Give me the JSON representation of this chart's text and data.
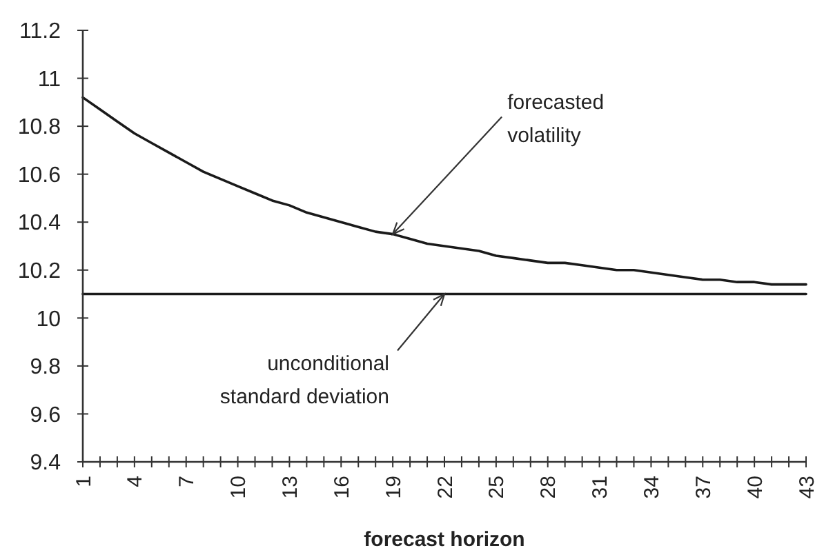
{
  "chart_data": {
    "type": "line",
    "xlabel": "forecast horizon",
    "categories": [
      "1",
      null,
      null,
      "4",
      null,
      null,
      "7",
      null,
      null,
      "10",
      null,
      null,
      "13",
      null,
      null,
      "16",
      null,
      null,
      "19",
      null,
      null,
      "22",
      null,
      null,
      "25",
      null,
      null,
      "28",
      null,
      null,
      "31",
      null,
      null,
      "34",
      null,
      null,
      "37",
      null,
      null,
      "40",
      null,
      null,
      "43"
    ],
    "series": [
      {
        "color": "#1a1a1a",
        "values": [
          10.92,
          10.87,
          10.82,
          10.77,
          10.73,
          10.69,
          10.65,
          10.61,
          10.58,
          10.55,
          10.52,
          10.49,
          10.47,
          10.44,
          10.42,
          10.4,
          10.38,
          10.36,
          10.35,
          10.33,
          10.31,
          10.3,
          10.29,
          10.28,
          10.26,
          10.25,
          10.24,
          10.23,
          10.23,
          10.22,
          10.21,
          10.2,
          10.2,
          10.19,
          10.18,
          10.17,
          10.16,
          10.16,
          10.15,
          10.15,
          10.14,
          10.14,
          10.14
        ]
      },
      {
        "color": "#1a1a1a",
        "values": [
          10.1,
          10.1,
          10.1,
          10.1,
          10.1,
          10.1,
          10.1,
          10.1,
          10.1,
          10.1,
          10.1,
          10.1,
          10.1,
          10.1,
          10.1,
          10.1,
          10.1,
          10.1,
          10.1,
          10.1,
          10.1,
          10.1,
          10.1,
          10.1,
          10.1,
          10.1,
          10.1,
          10.1,
          10.1,
          10.1,
          10.1,
          10.1,
          10.1,
          10.1,
          10.1,
          10.1,
          10.1,
          10.1,
          10.1,
          10.1,
          10.1,
          10.1,
          10.1
        ]
      }
    ],
    "ylim": [
      9.4,
      11.2
    ],
    "yticks": [
      9.4,
      9.6,
      9.8,
      10,
      10.2,
      10.4,
      10.6,
      10.8,
      11,
      11.2
    ],
    "grid": false,
    "marker": "none",
    "line_style": "solid",
    "annotations": [
      {
        "text": "forecasted\nvolatility",
        "x": "19",
        "y": 10.35
      },
      {
        "text": "unconditional\nstandard deviation",
        "x": "22",
        "y": 10.1
      }
    ]
  }
}
